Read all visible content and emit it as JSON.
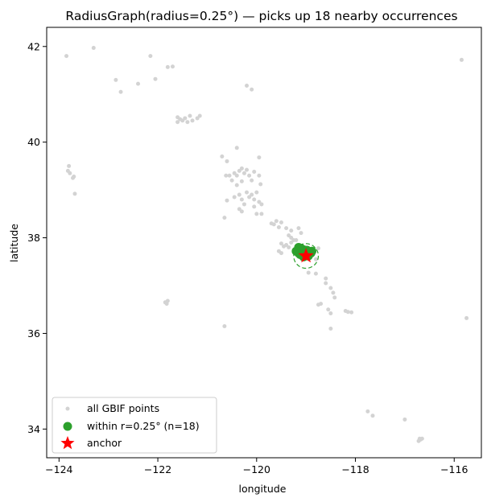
{
  "chart_data": {
    "type": "scatter",
    "title": "RadiusGraph(radius=0.25°) — picks up 18 nearby occurrences",
    "xlabel": "longitude",
    "ylabel": "latitude",
    "xlim": [
      -124.25,
      -115.45
    ],
    "ylim": [
      33.4,
      42.4
    ],
    "xticks": [
      -124,
      -122,
      -120,
      -118,
      -116
    ],
    "xtick_labels": [
      "−124",
      "−122",
      "−120",
      "−118",
      "−116"
    ],
    "yticks": [
      34,
      36,
      38,
      40,
      42
    ],
    "ytick_labels": [
      "34",
      "36",
      "38",
      "40",
      "42"
    ],
    "grid": false,
    "legend_position": "lower-left",
    "colors": {
      "all_points": "#d3d3d3",
      "within": "#2ca02c",
      "anchor": "#ff0000"
    },
    "series": [
      {
        "name": "all GBIF points",
        "marker": "circle-small",
        "points": [
          [
            -123.85,
            41.8
          ],
          [
            -123.3,
            41.97
          ],
          [
            -122.15,
            41.8
          ],
          [
            -121.8,
            41.57
          ],
          [
            -121.7,
            41.58
          ],
          [
            -122.85,
            41.3
          ],
          [
            -122.75,
            41.05
          ],
          [
            -122.4,
            41.22
          ],
          [
            -122.05,
            41.32
          ],
          [
            -120.2,
            41.18
          ],
          [
            -120.1,
            41.1
          ],
          [
            -115.85,
            41.72
          ],
          [
            -121.6,
            40.52
          ],
          [
            -121.55,
            40.48
          ],
          [
            -121.5,
            40.45
          ],
          [
            -121.45,
            40.5
          ],
          [
            -121.35,
            40.55
          ],
          [
            -121.3,
            40.45
          ],
          [
            -121.2,
            40.5
          ],
          [
            -121.15,
            40.55
          ],
          [
            -121.6,
            40.42
          ],
          [
            -121.4,
            40.42
          ],
          [
            -120.7,
            39.7
          ],
          [
            -120.6,
            39.6
          ],
          [
            -120.4,
            39.88
          ],
          [
            -119.95,
            39.68
          ],
          [
            -123.8,
            39.5
          ],
          [
            -123.82,
            39.4
          ],
          [
            -123.78,
            39.35
          ],
          [
            -123.7,
            39.28
          ],
          [
            -123.72,
            39.25
          ],
          [
            -123.68,
            38.92
          ],
          [
            -120.55,
            39.3
          ],
          [
            -120.45,
            39.35
          ],
          [
            -120.4,
            39.3
          ],
          [
            -120.35,
            39.4
          ],
          [
            -120.3,
            39.45
          ],
          [
            -120.25,
            39.35
          ],
          [
            -120.2,
            39.42
          ],
          [
            -120.15,
            39.3
          ],
          [
            -120.05,
            39.38
          ],
          [
            -119.95,
            39.3
          ],
          [
            -120.1,
            39.2
          ],
          [
            -119.92,
            39.12
          ],
          [
            -120.4,
            39.1
          ],
          [
            -120.5,
            39.2
          ],
          [
            -120.3,
            39.18
          ],
          [
            -120.62,
            39.3
          ],
          [
            -120.45,
            38.85
          ],
          [
            -120.35,
            38.9
          ],
          [
            -120.3,
            38.8
          ],
          [
            -120.2,
            38.95
          ],
          [
            -120.15,
            38.85
          ],
          [
            -120.1,
            38.9
          ],
          [
            -120.05,
            38.8
          ],
          [
            -120.0,
            38.95
          ],
          [
            -119.95,
            38.75
          ],
          [
            -120.25,
            38.7
          ],
          [
            -120.05,
            38.65
          ],
          [
            -119.9,
            38.7
          ],
          [
            -120.6,
            38.78
          ],
          [
            -120.35,
            38.6
          ],
          [
            -120.3,
            38.55
          ],
          [
            -120.0,
            38.5
          ],
          [
            -119.9,
            38.5
          ],
          [
            -120.65,
            38.42
          ],
          [
            -119.7,
            38.3
          ],
          [
            -119.6,
            38.35
          ],
          [
            -119.5,
            38.32
          ],
          [
            -119.4,
            38.2
          ],
          [
            -119.55,
            38.22
          ],
          [
            -119.3,
            38.15
          ],
          [
            -119.15,
            38.2
          ],
          [
            -119.1,
            38.1
          ],
          [
            -119.65,
            38.28
          ],
          [
            -119.35,
            38.05
          ],
          [
            -119.3,
            38.0
          ],
          [
            -119.25,
            37.95
          ],
          [
            -119.2,
            37.95
          ],
          [
            -119.5,
            37.88
          ],
          [
            -119.45,
            37.82
          ],
          [
            -119.4,
            37.85
          ],
          [
            -119.3,
            37.9
          ],
          [
            -119.35,
            37.8
          ],
          [
            -119.55,
            37.72
          ],
          [
            -119.5,
            37.68
          ],
          [
            -118.75,
            37.78
          ],
          [
            -118.8,
            37.55
          ],
          [
            -118.95,
            37.27
          ],
          [
            -118.8,
            37.25
          ],
          [
            -118.6,
            37.05
          ],
          [
            -118.5,
            36.95
          ],
          [
            -118.45,
            36.85
          ],
          [
            -118.42,
            36.75
          ],
          [
            -118.6,
            37.15
          ],
          [
            -118.75,
            36.6
          ],
          [
            -118.7,
            36.62
          ],
          [
            -118.55,
            36.5
          ],
          [
            -118.5,
            36.42
          ],
          [
            -118.2,
            36.47
          ],
          [
            -118.15,
            36.45
          ],
          [
            -118.08,
            36.44
          ],
          [
            -118.5,
            36.1
          ],
          [
            -121.85,
            36.65
          ],
          [
            -121.8,
            36.68
          ],
          [
            -121.82,
            36.62
          ],
          [
            -120.65,
            36.15
          ],
          [
            -115.75,
            36.32
          ],
          [
            -117.75,
            34.37
          ],
          [
            -117.65,
            34.28
          ],
          [
            -117.0,
            34.2
          ],
          [
            -116.7,
            33.8
          ],
          [
            -116.68,
            33.78
          ],
          [
            -116.65,
            33.8
          ],
          [
            -116.72,
            33.75
          ]
        ]
      },
      {
        "name": "within r=0.25° (n=18)",
        "marker": "circle-large",
        "points": [
          [
            -119.15,
            37.8
          ],
          [
            -119.1,
            37.78
          ],
          [
            -119.05,
            37.75
          ],
          [
            -119.1,
            37.7
          ],
          [
            -119.15,
            37.68
          ],
          [
            -119.0,
            37.72
          ],
          [
            -118.95,
            37.7
          ],
          [
            -119.05,
            37.65
          ],
          [
            -119.12,
            37.65
          ],
          [
            -118.9,
            37.68
          ],
          [
            -119.0,
            37.62
          ],
          [
            -118.95,
            37.62
          ],
          [
            -119.05,
            37.6
          ],
          [
            -119.08,
            37.75
          ],
          [
            -119.2,
            37.72
          ],
          [
            -118.88,
            37.72
          ],
          [
            -119.02,
            37.68
          ],
          [
            -118.98,
            37.74
          ]
        ]
      },
      {
        "name": "anchor",
        "marker": "star",
        "points": [
          [
            -119.0,
            37.62
          ]
        ],
        "radius": 0.25
      }
    ]
  }
}
